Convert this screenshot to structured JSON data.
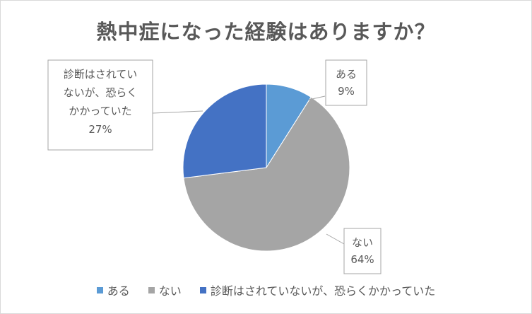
{
  "chart_data": {
    "type": "pie",
    "title": "熱中症になった経験はありますか？",
    "slices": [
      {
        "label": "ある",
        "value": 9,
        "percent_label": "9%",
        "color": "#5b9bd5"
      },
      {
        "label": "ない",
        "value": 64,
        "percent_label": "64%",
        "color": "#a5a5a5"
      },
      {
        "label": "診断はされていないが、恐らくかかっていた",
        "value": 27,
        "percent_label": "27%",
        "color": "#4472c4"
      }
    ],
    "data_labels": [
      {
        "lines": [
          "ある"
        ],
        "percent": "9%"
      },
      {
        "lines": [
          "ない"
        ],
        "percent": "64%"
      },
      {
        "lines": [
          "診断はされてい",
          "ないが、恐らく",
          "かかっていた"
        ],
        "percent": "27%"
      }
    ],
    "legend_placement": "bottom"
  }
}
